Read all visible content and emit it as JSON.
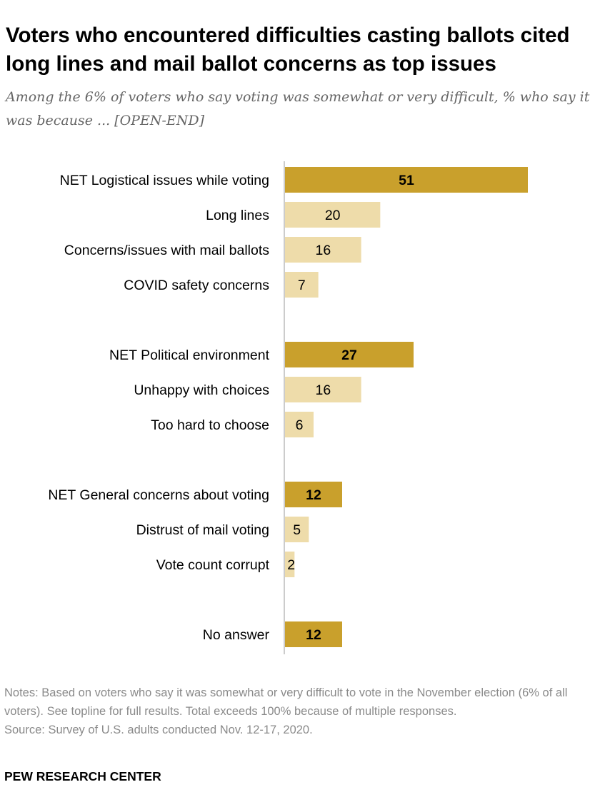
{
  "header": {
    "title": "Voters who encountered difficulties casting ballots cited long lines and mail ballot concerns as top issues",
    "subtitle": "Among the 6% of voters who say voting was somewhat or very difficult, % who say it was because ... [OPEN-END]"
  },
  "footer": {
    "notes": "Notes: Based on voters who say it was somewhat or very difficult to vote in the November election (6% of all voters). See topline for full results. Total exceeds 100% because of multiple responses.",
    "source": "Source: Survey of U.S. adults conducted Nov. 12-17, 2020.",
    "org": "PEW RESEARCH CENTER"
  },
  "colors": {
    "net": "#c9a02c",
    "sub": "#eedcaa",
    "axis": "#999999",
    "label": "#000000"
  },
  "chart_data": {
    "type": "bar",
    "orientation": "horizontal",
    "categories": [
      "NET Logistical issues while voting",
      "Long lines",
      "Concerns/issues with mail ballots",
      "COVID safety concerns",
      "NET Political environment",
      "Unhappy with choices",
      "Too hard to choose",
      "NET General concerns about voting",
      "Distrust of mail voting",
      "Vote count corrupt",
      "No answer"
    ],
    "values": [
      51,
      20,
      16,
      7,
      27,
      16,
      6,
      12,
      5,
      2,
      12
    ],
    "is_net": [
      true,
      false,
      false,
      false,
      true,
      false,
      false,
      true,
      false,
      false,
      true
    ],
    "groups": [
      [
        0,
        1,
        2,
        3
      ],
      [
        4,
        5,
        6
      ],
      [
        7,
        8,
        9
      ],
      [
        10
      ]
    ],
    "xlim": [
      0,
      51
    ],
    "legend": "none",
    "grid": false
  }
}
